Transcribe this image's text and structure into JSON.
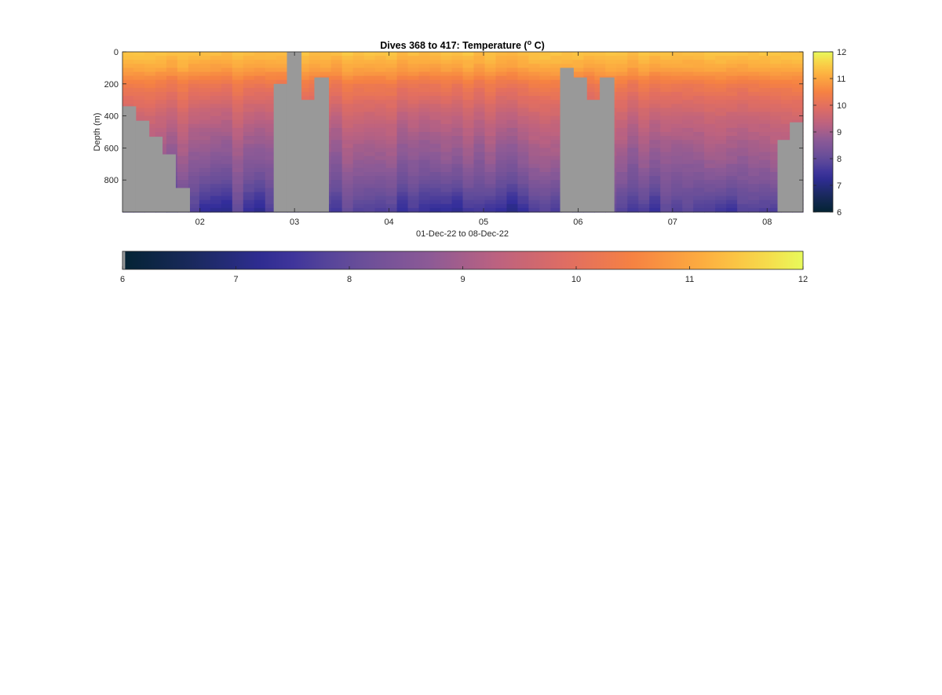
{
  "chart_data": {
    "type": "heatmap",
    "title": "Dives 368 to 417: Temperature (",
    "title_degree": "o",
    "title_unit": " C)",
    "xlabel": "01-Dec-22 to 08-Dec-22",
    "ylabel": "Depth (m)",
    "x_range_days": [
      1.18,
      8.38
    ],
    "x_ticks": [
      {
        "day": 2,
        "label": "02"
      },
      {
        "day": 3,
        "label": "03"
      },
      {
        "day": 4,
        "label": "04"
      },
      {
        "day": 5,
        "label": "05"
      },
      {
        "day": 6,
        "label": "06"
      },
      {
        "day": 7,
        "label": "07"
      },
      {
        "day": 8,
        "label": "08"
      }
    ],
    "y_range_m": [
      0,
      1000
    ],
    "y_reversed": true,
    "y_ticks": [
      {
        "value": 0,
        "label": "0"
      },
      {
        "value": 200,
        "label": "200"
      },
      {
        "value": 400,
        "label": "400"
      },
      {
        "value": 600,
        "label": "600"
      },
      {
        "value": 800,
        "label": "800"
      }
    ],
    "color_range": [
      6,
      12
    ],
    "colorbar_ticks": [
      "6",
      "7",
      "8",
      "9",
      "10",
      "11",
      "12"
    ],
    "colormap": "thermal",
    "missing_color": "#999999",
    "vertical_profile_c": [
      {
        "depth": 0,
        "temp": 11.4
      },
      {
        "depth": 100,
        "temp": 11.0
      },
      {
        "depth": 200,
        "temp": 10.3
      },
      {
        "depth": 300,
        "temp": 9.9
      },
      {
        "depth": 400,
        "temp": 9.5
      },
      {
        "depth": 500,
        "temp": 9.2
      },
      {
        "depth": 600,
        "temp": 8.95
      },
      {
        "depth": 700,
        "temp": 8.7
      },
      {
        "depth": 800,
        "temp": 8.4
      },
      {
        "depth": 900,
        "temp": 8.0
      },
      {
        "depth": 1000,
        "temp": 7.6
      }
    ],
    "no_data_regions": [
      {
        "x_start": 1.18,
        "x_end": 1.32,
        "depth_from": 340
      },
      {
        "x_start": 1.32,
        "x_end": 1.46,
        "depth_from": 430
      },
      {
        "x_start": 1.46,
        "x_end": 1.6,
        "depth_from": 530
      },
      {
        "x_start": 1.6,
        "x_end": 1.74,
        "depth_from": 640
      },
      {
        "x_start": 1.74,
        "x_end": 1.89,
        "depth_from": 850
      },
      {
        "x_start": 2.78,
        "x_end": 2.92,
        "depth_from": 200
      },
      {
        "x_start": 2.92,
        "x_end": 3.07,
        "depth_from": 0
      },
      {
        "x_start": 3.07,
        "x_end": 3.21,
        "depth_from": 300
      },
      {
        "x_start": 3.21,
        "x_end": 3.36,
        "depth_from": 160
      },
      {
        "x_start": 5.81,
        "x_end": 5.95,
        "depth_from": 100
      },
      {
        "x_start": 5.95,
        "x_end": 6.09,
        "depth_from": 160
      },
      {
        "x_start": 6.09,
        "x_end": 6.23,
        "depth_from": 300
      },
      {
        "x_start": 6.23,
        "x_end": 6.38,
        "depth_from": 160
      },
      {
        "x_start": 8.11,
        "x_end": 8.24,
        "depth_from": 550
      },
      {
        "x_start": 8.24,
        "x_end": 8.38,
        "depth_from": 440
      }
    ]
  }
}
